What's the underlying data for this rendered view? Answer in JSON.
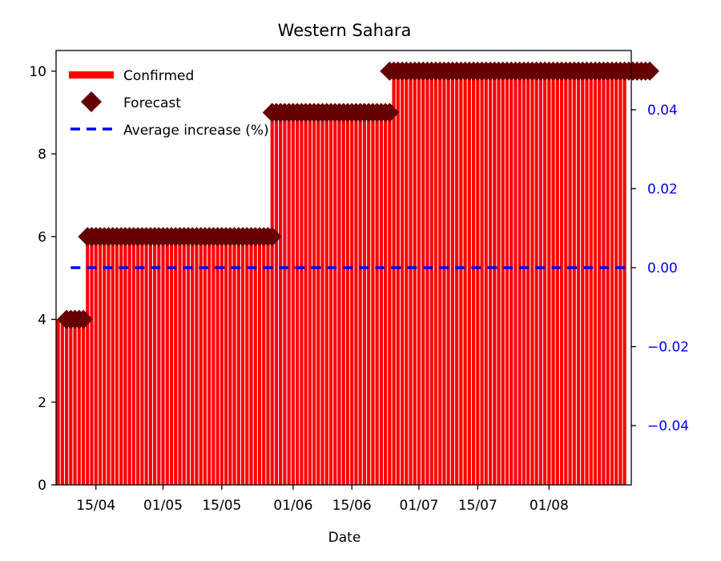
{
  "chart_data": {
    "type": "bar",
    "title": "Western Sahara",
    "xlabel": "Date",
    "ylabel": "",
    "start_date": "2020-04-06",
    "end_date": "2020-08-19",
    "ylim": [
      0,
      10.5
    ],
    "y_ticks": [
      0,
      2,
      4,
      6,
      8,
      10
    ],
    "y2lim": [
      -0.055,
      0.055
    ],
    "y2_ticks": [
      "0.04",
      "0.02",
      "0.00",
      "−0.02",
      "−0.04"
    ],
    "y2_tick_values": [
      0.04,
      0.02,
      0.0,
      -0.02,
      -0.04
    ],
    "x_ticks": [
      {
        "label": "15/04",
        "date": "2020-04-15"
      },
      {
        "label": "01/05",
        "date": "2020-05-01"
      },
      {
        "label": "15/05",
        "date": "2020-05-15"
      },
      {
        "label": "01/06",
        "date": "2020-06-01"
      },
      {
        "label": "15/06",
        "date": "2020-06-15"
      },
      {
        "label": "01/07",
        "date": "2020-07-01"
      },
      {
        "label": "15/07",
        "date": "2020-07-15"
      },
      {
        "label": "01/08",
        "date": "2020-08-01"
      }
    ],
    "confirmed_segments": [
      {
        "start": "2020-04-06",
        "end": "2020-04-12",
        "value": 4
      },
      {
        "start": "2020-04-13",
        "end": "2020-05-26",
        "value": 6
      },
      {
        "start": "2020-05-27",
        "end": "2020-06-24",
        "value": 9
      },
      {
        "start": "2020-06-25",
        "end": "2020-08-19",
        "value": 10
      }
    ],
    "forecast_segments": [
      {
        "start": "2020-04-08",
        "end": "2020-04-12",
        "value": 4
      },
      {
        "start": "2020-04-13",
        "end": "2020-05-27",
        "value": 6
      },
      {
        "start": "2020-05-27",
        "end": "2020-06-24",
        "value": 9
      },
      {
        "start": "2020-06-24",
        "end": "2020-08-25",
        "value": 10
      }
    ],
    "average_increase": {
      "start": "2020-04-09",
      "end": "2020-08-20",
      "value": 0.0
    },
    "legend": {
      "placement": "top-left",
      "entries": [
        {
          "label": "Confirmed",
          "color": "#ff0000"
        },
        {
          "label": "Forecast",
          "color": "#660000"
        },
        {
          "label": "Average increase (%)",
          "color": "#0000ff"
        }
      ]
    },
    "colors": {
      "confirmed": "#ff0000",
      "forecast": "#660000",
      "average": "#0000ff",
      "right_axis": "#0000ff"
    }
  }
}
